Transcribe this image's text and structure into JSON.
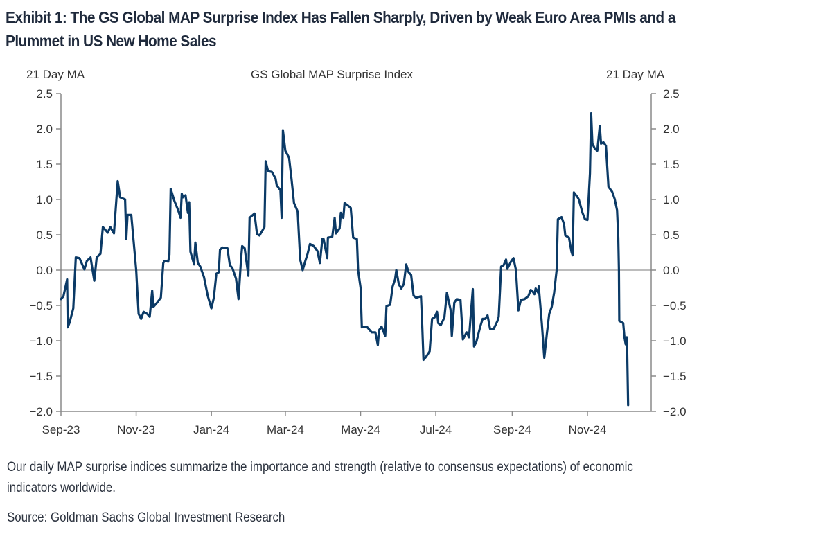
{
  "exhibit": {
    "title_line1": "Exhibit 1: The GS Global MAP Surprise Index Has Fallen Sharply, Driven by Weak Euro Area PMIs and a",
    "title_line2": "Plummet in US New Home Sales",
    "note": "Our daily MAP surprise indices summarize the importance and strength (relative to consensus expectations) of economic",
    "note_line2": "indicators worldwide.",
    "source": "Source: Goldman Sachs Global Investment Research"
  },
  "chart_data": {
    "type": "line",
    "title": "GS Global MAP Surprise Index",
    "ylabel_left": "21 Day MA",
    "ylabel_right": "21 Day MA",
    "xlabel": "",
    "ylim": [
      -2.0,
      2.5
    ],
    "yticks": [
      2.5,
      2.0,
      1.5,
      1.0,
      0.5,
      0.0,
      -0.5,
      -1.0,
      -1.5,
      -2.0
    ],
    "ytick_labels": [
      "2.5",
      "2.0",
      "1.5",
      "1.0",
      "0.5",
      "0.0",
      "−0.5",
      "−1.0",
      "−1.5",
      "−2.0"
    ],
    "x_start": "2023-09-01",
    "x_unit": "days since x_start",
    "xlim_days": [
      0,
      480
    ],
    "xticks_days": [
      0,
      61,
      122,
      182,
      243,
      304,
      366,
      427
    ],
    "xtick_labels": [
      "Sep-23",
      "Nov-23",
      "Jan-24",
      "Mar-24",
      "May-24",
      "Jul-24",
      "Sep-24",
      "Nov-24"
    ],
    "zero_line": true,
    "grid": false,
    "legend": "none",
    "line_color": "#0b3a66",
    "series": [
      {
        "name": "GS Global MAP Surprise Index (21 Day MA)",
        "points": [
          [
            0,
            -0.41
          ],
          [
            2,
            -0.37
          ],
          [
            5,
            -0.13
          ],
          [
            5.5,
            -0.81
          ],
          [
            7,
            -0.74
          ],
          [
            10,
            -0.54
          ],
          [
            12,
            0.18
          ],
          [
            15,
            0.17
          ],
          [
            19,
            0.01
          ],
          [
            21,
            0.13
          ],
          [
            24,
            0.18
          ],
          [
            27,
            -0.15
          ],
          [
            29,
            0.18
          ],
          [
            32,
            0.23
          ],
          [
            34,
            0.61
          ],
          [
            38,
            0.53
          ],
          [
            40,
            0.61
          ],
          [
            43,
            0.52
          ],
          [
            46,
            1.26
          ],
          [
            48,
            1.03
          ],
          [
            52,
            1.0
          ],
          [
            53,
            0.44
          ],
          [
            54,
            0.78
          ],
          [
            57,
            0.78
          ],
          [
            61,
            0.0
          ],
          [
            61.5,
            -0.17
          ],
          [
            63,
            -0.62
          ],
          [
            65,
            -0.69
          ],
          [
            67,
            -0.59
          ],
          [
            70,
            -0.62
          ],
          [
            72,
            -0.66
          ],
          [
            74,
            -0.29
          ],
          [
            75,
            -0.52
          ],
          [
            78,
            -0.46
          ],
          [
            81,
            -0.39
          ],
          [
            83,
            0.1
          ],
          [
            84,
            0.13
          ],
          [
            87,
            0.12
          ],
          [
            88,
            0.22
          ],
          [
            89,
            1.15
          ],
          [
            92,
            0.98
          ],
          [
            95,
            0.85
          ],
          [
            97,
            0.74
          ],
          [
            98,
            1.08
          ],
          [
            99,
            1.03
          ],
          [
            101,
            1.06
          ],
          [
            103,
            0.81
          ],
          [
            104,
            0.96
          ],
          [
            105,
            0.26
          ],
          [
            108,
            0.08
          ],
          [
            109,
            0.39
          ],
          [
            111,
            0.1
          ],
          [
            113,
            0.05
          ],
          [
            116,
            -0.1
          ],
          [
            119,
            -0.36
          ],
          [
            122,
            -0.54
          ],
          [
            124,
            -0.39
          ],
          [
            126,
            -0.05
          ],
          [
            128,
            -0.03
          ],
          [
            129,
            0.29
          ],
          [
            131,
            0.32
          ],
          [
            135,
            0.31
          ],
          [
            137,
            0.07
          ],
          [
            139,
            0.03
          ],
          [
            142,
            -0.12
          ],
          [
            144,
            -0.41
          ],
          [
            146,
            0.15
          ],
          [
            147,
            0.34
          ],
          [
            149,
            0.31
          ],
          [
            152,
            -0.08
          ],
          [
            153,
            0.74
          ],
          [
            157,
            0.8
          ],
          [
            159,
            0.51
          ],
          [
            161,
            0.49
          ],
          [
            165,
            0.61
          ],
          [
            166,
            1.54
          ],
          [
            168,
            1.4
          ],
          [
            171,
            1.39
          ],
          [
            174,
            1.3
          ],
          [
            175,
            1.2
          ],
          [
            178,
            1.13
          ],
          [
            179,
            0.74
          ],
          [
            180,
            1.98
          ],
          [
            182,
            1.69
          ],
          [
            185,
            1.59
          ],
          [
            187,
            1.29
          ],
          [
            189,
            0.95
          ],
          [
            192,
            0.83
          ],
          [
            194,
            0.15
          ],
          [
            196,
            0.0
          ],
          [
            198,
            0.12
          ],
          [
            200,
            0.23
          ],
          [
            202,
            0.37
          ],
          [
            205,
            0.34
          ],
          [
            208,
            0.27
          ],
          [
            210,
            0.1
          ],
          [
            212,
            0.44
          ],
          [
            213,
            0.44
          ],
          [
            216,
            0.17
          ],
          [
            216.5,
            0.46
          ],
          [
            220,
            0.47
          ],
          [
            222,
            0.74
          ],
          [
            223,
            0.52
          ],
          [
            226,
            0.59
          ],
          [
            227,
            0.81
          ],
          [
            229,
            0.74
          ],
          [
            230,
            0.95
          ],
          [
            233,
            0.91
          ],
          [
            235,
            0.88
          ],
          [
            237,
            0.46
          ],
          [
            240,
            0.44
          ],
          [
            241,
            0.0
          ],
          [
            243,
            -0.25
          ],
          [
            244,
            -0.81
          ],
          [
            248,
            -0.8
          ],
          [
            252,
            -0.88
          ],
          [
            255,
            -0.88
          ],
          [
            257,
            -1.06
          ],
          [
            258,
            -0.85
          ],
          [
            260,
            -0.8
          ],
          [
            263,
            -0.93
          ],
          [
            264,
            -0.51
          ],
          [
            267,
            -0.49
          ],
          [
            269,
            -0.23
          ],
          [
            271,
            -0.13
          ],
          [
            272,
            0.0
          ],
          [
            274,
            -0.2
          ],
          [
            276,
            -0.26
          ],
          [
            278,
            -0.2
          ],
          [
            280,
            0.08
          ],
          [
            282,
            -0.03
          ],
          [
            284,
            -0.07
          ],
          [
            286,
            -0.36
          ],
          [
            288,
            -0.39
          ],
          [
            292,
            -0.37
          ],
          [
            293,
            -0.78
          ],
          [
            294,
            -1.27
          ],
          [
            296,
            -1.23
          ],
          [
            299,
            -1.15
          ],
          [
            301,
            -0.69
          ],
          [
            303,
            -0.67
          ],
          [
            305,
            -0.59
          ],
          [
            306,
            -0.75
          ],
          [
            308,
            -0.78
          ],
          [
            311,
            -0.67
          ],
          [
            313,
            -0.32
          ],
          [
            316,
            -0.56
          ],
          [
            317,
            -0.93
          ],
          [
            319,
            -0.46
          ],
          [
            321,
            -0.41
          ],
          [
            324,
            -0.42
          ],
          [
            326,
            -0.98
          ],
          [
            329,
            -0.88
          ],
          [
            331,
            -0.95
          ],
          [
            334,
            -0.27
          ],
          [
            335,
            -1.08
          ],
          [
            337,
            -1.01
          ],
          [
            340,
            -0.8
          ],
          [
            342,
            -0.69
          ],
          [
            344,
            -0.69
          ],
          [
            346,
            -0.64
          ],
          [
            348,
            -0.83
          ],
          [
            351,
            -0.83
          ],
          [
            354,
            -0.72
          ],
          [
            355,
            -0.66
          ],
          [
            357,
            0.05
          ],
          [
            359,
            0.07
          ],
          [
            361,
            0.15
          ],
          [
            362,
            0.02
          ],
          [
            365,
            0.12
          ],
          [
            367,
            0.17
          ],
          [
            369,
            0.0
          ],
          [
            371,
            -0.57
          ],
          [
            373,
            -0.42
          ],
          [
            376,
            -0.41
          ],
          [
            379,
            -0.37
          ],
          [
            381,
            -0.28
          ],
          [
            382,
            -0.29
          ],
          [
            384,
            -0.34
          ],
          [
            385,
            -0.26
          ],
          [
            387,
            -0.32
          ],
          [
            387.5,
            -0.23
          ],
          [
            390,
            -0.75
          ],
          [
            392,
            -1.24
          ],
          [
            394,
            -0.91
          ],
          [
            396,
            -0.62
          ],
          [
            398,
            -0.52
          ],
          [
            400,
            -0.32
          ],
          [
            402,
            0.0
          ],
          [
            403,
            0.72
          ],
          [
            406,
            0.75
          ],
          [
            408,
            0.65
          ],
          [
            409,
            0.49
          ],
          [
            412,
            0.46
          ],
          [
            414,
            0.26
          ],
          [
            415,
            0.21
          ],
          [
            416,
            1.1
          ],
          [
            419,
            1.03
          ],
          [
            420,
            1.0
          ],
          [
            423,
            0.81
          ],
          [
            425,
            0.72
          ],
          [
            427,
            0.71
          ],
          [
            429,
            1.37
          ],
          [
            430,
            2.22
          ],
          [
            431,
            1.79
          ],
          [
            433,
            1.72
          ],
          [
            435,
            1.69
          ],
          [
            437,
            2.04
          ],
          [
            438,
            1.79
          ],
          [
            440,
            1.81
          ],
          [
            442,
            1.76
          ],
          [
            444,
            1.18
          ],
          [
            447,
            1.11
          ],
          [
            449,
            1.01
          ],
          [
            451,
            0.85
          ],
          [
            452,
            0.46
          ],
          [
            452.5,
            0.0
          ],
          [
            452.8,
            -0.72
          ],
          [
            456,
            -0.75
          ],
          [
            457,
            -0.95
          ],
          [
            458,
            -1.05
          ],
          [
            459,
            -0.95
          ],
          [
            460,
            -1.91
          ]
        ]
      }
    ]
  }
}
